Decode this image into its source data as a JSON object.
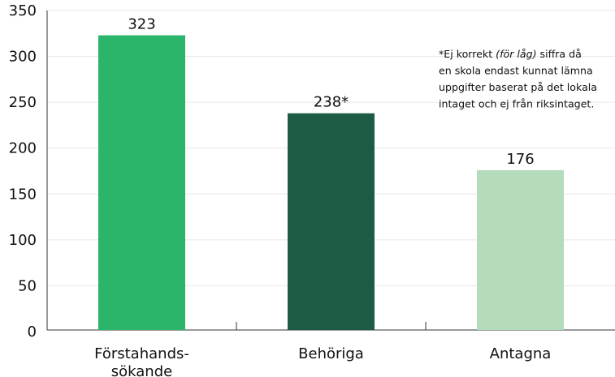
{
  "chart_data": {
    "type": "bar",
    "categories": [
      [
        "Förstahands-",
        "sökande"
      ],
      [
        "Behöriga"
      ],
      [
        "Antagna"
      ]
    ],
    "values": [
      323,
      238,
      176
    ],
    "data_labels": [
      "323",
      "238*",
      "176"
    ],
    "bar_colors": [
      "#2bb56a",
      "#1e5b44",
      "#b4dcbc"
    ],
    "ylim": [
      0,
      350
    ],
    "yticks": [
      0,
      50,
      100,
      150,
      200,
      250,
      300,
      350
    ],
    "grid": true,
    "note": {
      "line1_prefix": "*Ej korrekt ",
      "line1_emphasis": "(för låg)",
      "line1_suffix": " siffra då",
      "lines": [
        "en skola endast kunnat lämna",
        "uppgifter baserat på det lokala",
        "intaget och ej från riksintaget."
      ]
    }
  }
}
